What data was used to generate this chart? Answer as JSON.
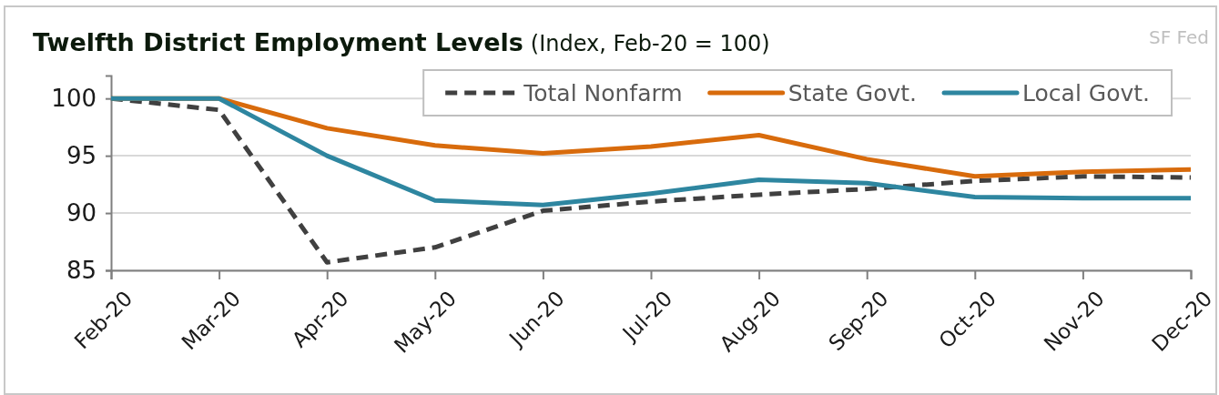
{
  "chart_data": {
    "type": "line",
    "title": "Twelfth District Employment Levels",
    "subtitle": "(Index, Feb-20 = 100)",
    "annotations": [
      "SF Fed"
    ],
    "categories": [
      "Feb-20",
      "Mar-20",
      "Apr-20",
      "May-20",
      "Jun-20",
      "Jul-20",
      "Aug-20",
      "Sep-20",
      "Oct-20",
      "Nov-20",
      "Dec-20"
    ],
    "series": [
      {
        "name": "Total Nonfarm",
        "color": "#404040",
        "line_style": "dashed",
        "values": [
          100,
          99.0,
          85.7,
          87.0,
          90.2,
          91.0,
          91.6,
          92.1,
          92.8,
          93.2,
          93.1
        ]
      },
      {
        "name": "State Govt.",
        "color": "#d86b0c",
        "values": [
          100,
          100,
          97.4,
          95.9,
          95.2,
          95.8,
          96.8,
          94.7,
          93.2,
          93.6,
          93.8
        ]
      },
      {
        "name": "Local Govt.",
        "color": "#2e86a0",
        "values": [
          100,
          100,
          95.0,
          91.1,
          90.7,
          91.7,
          92.9,
          92.6,
          91.4,
          91.3,
          91.3
        ]
      }
    ],
    "ylim": [
      85,
      102
    ],
    "yticks": [
      85,
      90,
      95,
      100
    ],
    "grid": "y",
    "legend": "top right",
    "line_style": "solid"
  }
}
